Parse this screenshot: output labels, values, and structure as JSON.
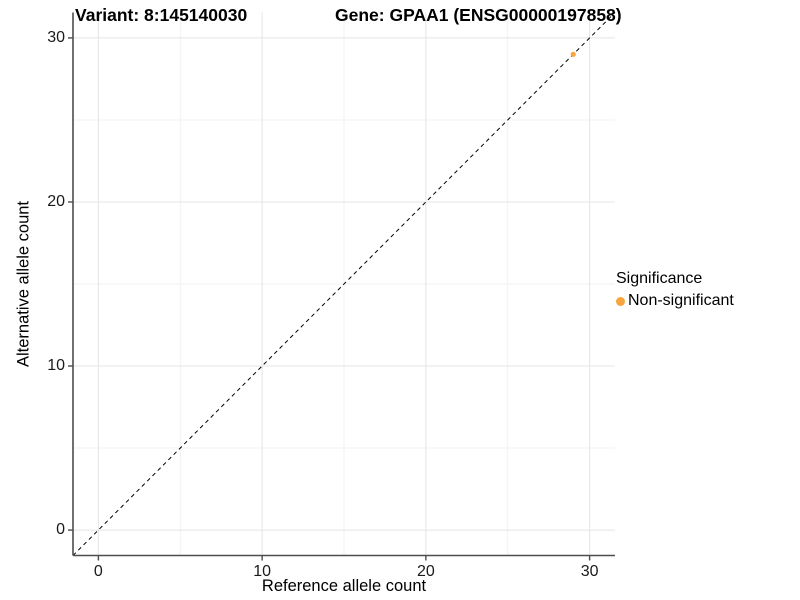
{
  "chart_data": {
    "type": "scatter",
    "titles": {
      "left": "Variant: 8:145140030",
      "right": "Gene: GPAA1 (ENSG00000197858)"
    },
    "xlabel": "Reference allele count",
    "ylabel": "Alternative allele count",
    "xlim": [
      -1.55,
      31.55
    ],
    "ylim": [
      -1.55,
      31.55
    ],
    "xticks": [
      0,
      10,
      20,
      30
    ],
    "yticks": [
      0,
      10,
      20,
      30
    ],
    "xticks_minor": [
      5,
      15,
      25
    ],
    "yticks_minor": [
      5,
      15,
      25
    ],
    "grid": "major+minor",
    "identity_line": {
      "slope": 1,
      "intercept": 0,
      "style": "dashed",
      "color": "#000000"
    },
    "series": [
      {
        "name": "Non-significant",
        "color": "#F9A43C",
        "points": [
          {
            "x": 29,
            "y": 29
          }
        ]
      }
    ],
    "legend": {
      "title": "Significance",
      "position": "right"
    },
    "colors": {
      "grid_major": "#E4E4E4",
      "grid_minor": "#F1F1F1",
      "axis": "#4D4D4D",
      "background": "#FFFFFF"
    }
  }
}
